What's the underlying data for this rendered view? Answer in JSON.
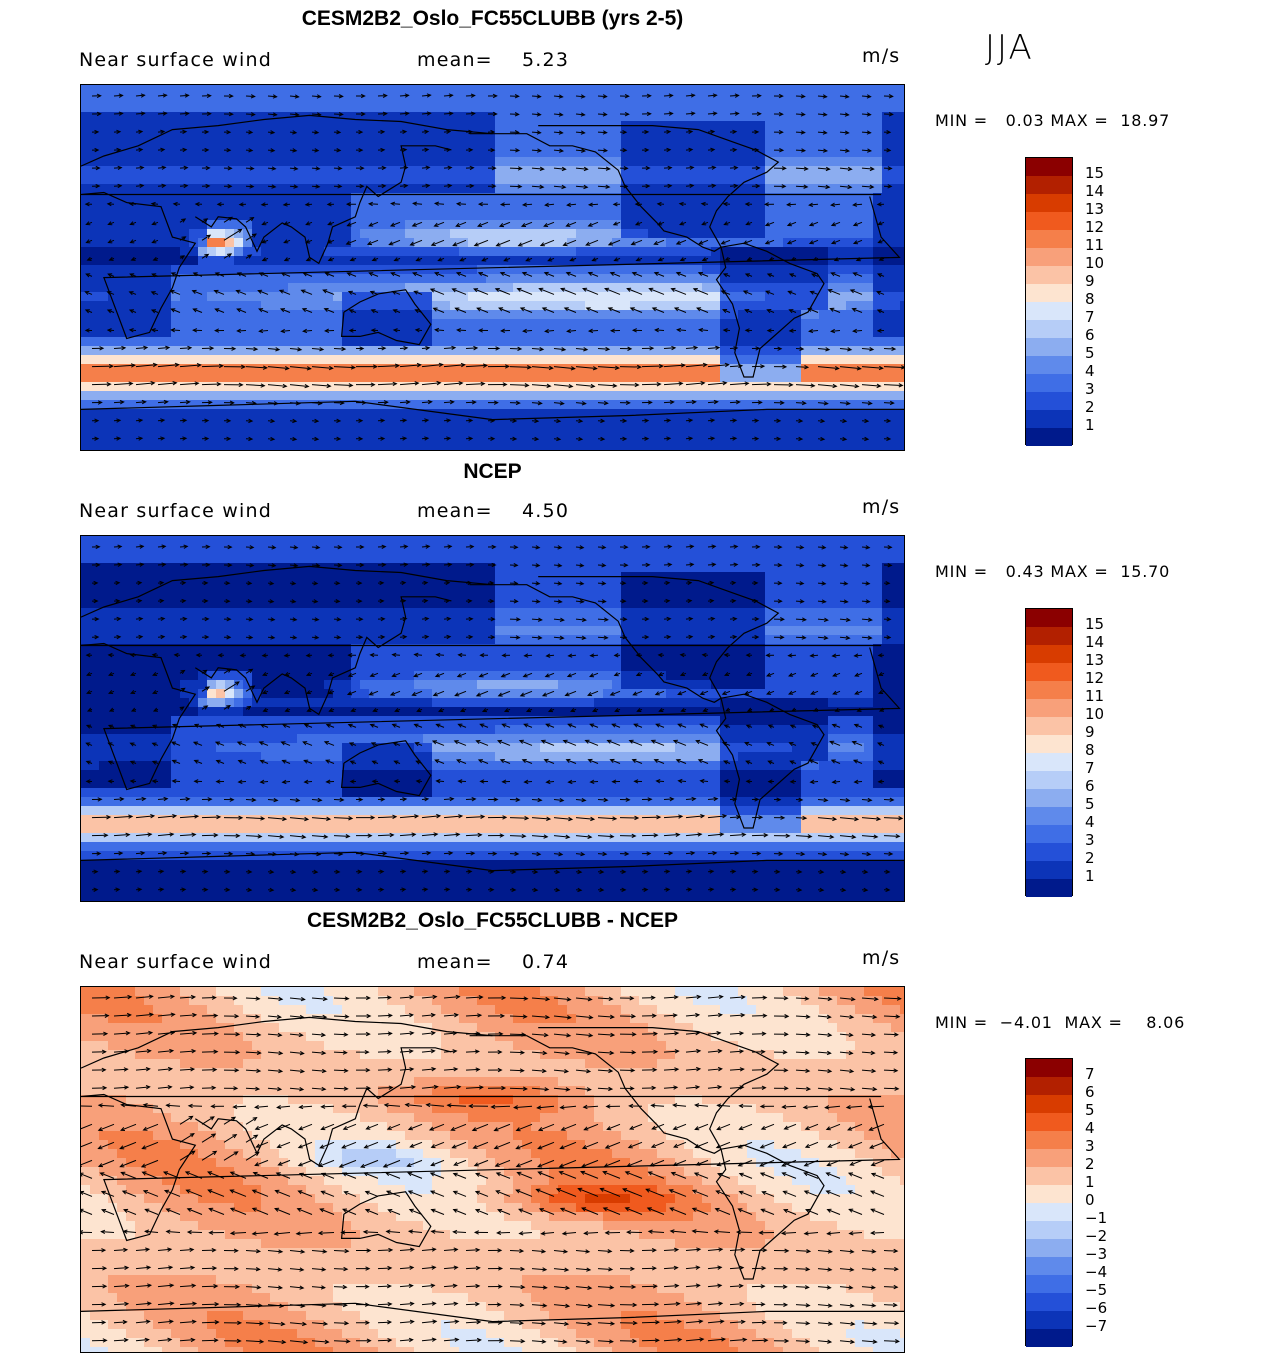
{
  "season": "JJA",
  "panels": [
    {
      "title": "CESM2B2_Oslo_FC55CLUBB (yrs 2-5)",
      "variable": "Near surface wind",
      "mean_label": "mean=",
      "mean_value": "5.23",
      "units": "m/s",
      "minmax": "MIN =   0.03 MAX =  18.97",
      "colorbar": {
        "ticks": [
          "15",
          "14",
          "13",
          "12",
          "11",
          "10",
          "9",
          "8",
          "7",
          "6",
          "5",
          "4",
          "3",
          "2",
          "1"
        ],
        "colors": [
          "#8b0000",
          "#b22000",
          "#d83c00",
          "#f05a1e",
          "#f57f4a",
          "#f8a07a",
          "#fbc3a6",
          "#fde4d0",
          "#d9e6fa",
          "#b6cdf7",
          "#8cadf0",
          "#5f8aeb",
          "#3f6ee6",
          "#2450d8",
          "#0c34b8",
          "#001a8c"
        ]
      },
      "chart_data": {
        "type": "heatmap",
        "field": "near surface wind speed with vectors",
        "units": "m/s",
        "mean": 5.23,
        "min": 0.03,
        "max": 18.97,
        "levels": [
          1,
          2,
          3,
          4,
          5,
          6,
          7,
          8,
          9,
          10,
          11,
          12,
          13,
          14,
          15
        ]
      }
    },
    {
      "title": "NCEP",
      "variable": "Near surface wind",
      "mean_label": "mean=",
      "mean_value": "4.50",
      "units": "m/s",
      "minmax": "MIN =   0.43 MAX =  15.70",
      "colorbar": {
        "ticks": [
          "15",
          "14",
          "13",
          "12",
          "11",
          "10",
          "9",
          "8",
          "7",
          "6",
          "5",
          "4",
          "3",
          "2",
          "1"
        ],
        "colors": [
          "#8b0000",
          "#b22000",
          "#d83c00",
          "#f05a1e",
          "#f57f4a",
          "#f8a07a",
          "#fbc3a6",
          "#fde4d0",
          "#d9e6fa",
          "#b6cdf7",
          "#8cadf0",
          "#5f8aeb",
          "#3f6ee6",
          "#2450d8",
          "#0c34b8",
          "#001a8c"
        ]
      },
      "chart_data": {
        "type": "heatmap",
        "field": "near surface wind speed with vectors",
        "units": "m/s",
        "mean": 4.5,
        "min": 0.43,
        "max": 15.7,
        "levels": [
          1,
          2,
          3,
          4,
          5,
          6,
          7,
          8,
          9,
          10,
          11,
          12,
          13,
          14,
          15
        ]
      }
    },
    {
      "title": "CESM2B2_Oslo_FC55CLUBB - NCEP",
      "variable": "Near surface wind",
      "mean_label": "mean=",
      "mean_value": "0.74",
      "units": "m/s",
      "minmax": "MIN =  −4.01  MAX =    8.06",
      "colorbar": {
        "ticks": [
          "7",
          "6",
          "5",
          "4",
          "3",
          "2",
          "1",
          "0",
          "−1",
          "−2",
          "−3",
          "−4",
          "−5",
          "−6",
          "−7"
        ],
        "colors": [
          "#8b0000",
          "#b22000",
          "#d83c00",
          "#f05a1e",
          "#f57f4a",
          "#f8a07a",
          "#fbc3a6",
          "#fde4d0",
          "#d9e6fa",
          "#b6cdf7",
          "#8cadf0",
          "#5f8aeb",
          "#3f6ee6",
          "#2450d8",
          "#0c34b8",
          "#001a8c"
        ]
      },
      "chart_data": {
        "type": "heatmap",
        "field": "near surface wind speed difference with vectors",
        "units": "m/s",
        "mean": 0.74,
        "min": -4.01,
        "max": 8.06,
        "levels": [
          -7,
          -6,
          -5,
          -4,
          -3,
          -2,
          -1,
          0,
          1,
          2,
          3,
          4,
          5,
          6,
          7
        ]
      }
    }
  ]
}
